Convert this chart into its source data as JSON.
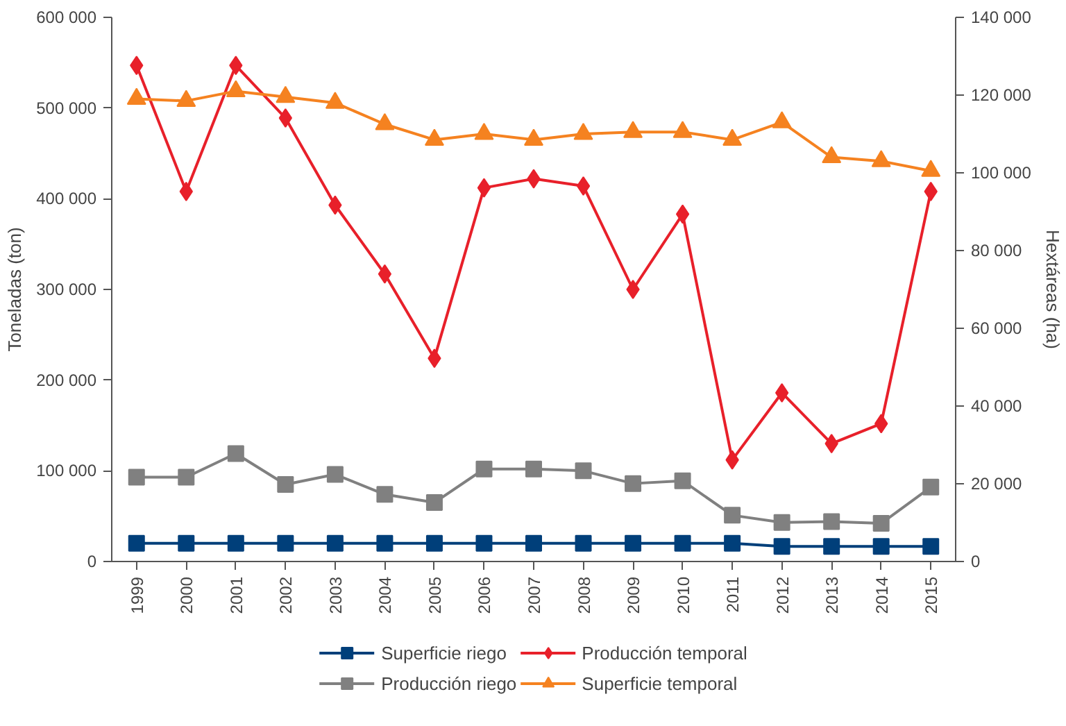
{
  "chart_data": {
    "type": "line",
    "categories": [
      "1999",
      "2000",
      "2001",
      "2002",
      "2003",
      "2004",
      "2005",
      "2006",
      "2007",
      "2008",
      "2009",
      "2010",
      "2011",
      "2012",
      "2013",
      "2014",
      "2015"
    ],
    "ylabel": "Toneladas (ton)",
    "y2label": "Hextáreas (ha)",
    "ylim": [
      0,
      600000
    ],
    "yticks": [
      {
        "value": 0,
        "label": "0"
      },
      {
        "value": 100000,
        "label": "100 000"
      },
      {
        "value": 200000,
        "label": "200 000"
      },
      {
        "value": 300000,
        "label": "300 000"
      },
      {
        "value": 400000,
        "label": "400 000"
      },
      {
        "value": 500000,
        "label": "500 000"
      },
      {
        "value": 600000,
        "label": "600 000"
      }
    ],
    "y2lim": [
      0,
      140000
    ],
    "y2ticks": [
      {
        "value": 0,
        "label": "0"
      },
      {
        "value": 20000,
        "label": "20 000"
      },
      {
        "value": 40000,
        "label": "40 000"
      },
      {
        "value": 60000,
        "label": "60 000"
      },
      {
        "value": 80000,
        "label": "80 000"
      },
      {
        "value": 100000,
        "label": "100 000"
      },
      {
        "value": 120000,
        "label": "120 000"
      },
      {
        "value": 140000,
        "label": "140 000"
      }
    ],
    "grid": false,
    "legend": "bottom",
    "series": [
      {
        "name": "Superficie riego",
        "color": "#003f7a",
        "marker": "square",
        "axis": "y2",
        "values": [
          4700,
          4700,
          4700,
          4700,
          4700,
          4700,
          4700,
          4700,
          4700,
          4700,
          4700,
          4700,
          4700,
          3900,
          3900,
          3900,
          3900
        ]
      },
      {
        "name": "Producción riego",
        "color": "#808080",
        "marker": "square",
        "values": [
          93000,
          93000,
          119000,
          85000,
          96000,
          74000,
          65000,
          102000,
          102000,
          100000,
          86000,
          89000,
          51000,
          43000,
          44000,
          42000,
          82000
        ]
      },
      {
        "name": "Producción temporal",
        "color": "#e8202a",
        "marker": "diamond",
        "values": [
          547000,
          408000,
          547000,
          489000,
          393000,
          317000,
          224000,
          412000,
          422000,
          414000,
          300000,
          383000,
          112000,
          186000,
          130000,
          152000,
          408000
        ]
      },
      {
        "name": "Superficie temporal",
        "color": "#f58220",
        "marker": "triangle",
        "axis": "y2",
        "values": [
          119000,
          118500,
          121000,
          119500,
          118000,
          112500,
          108500,
          110000,
          108500,
          110000,
          110500,
          110500,
          108500,
          113000,
          104000,
          103000,
          100500
        ]
      }
    ]
  }
}
